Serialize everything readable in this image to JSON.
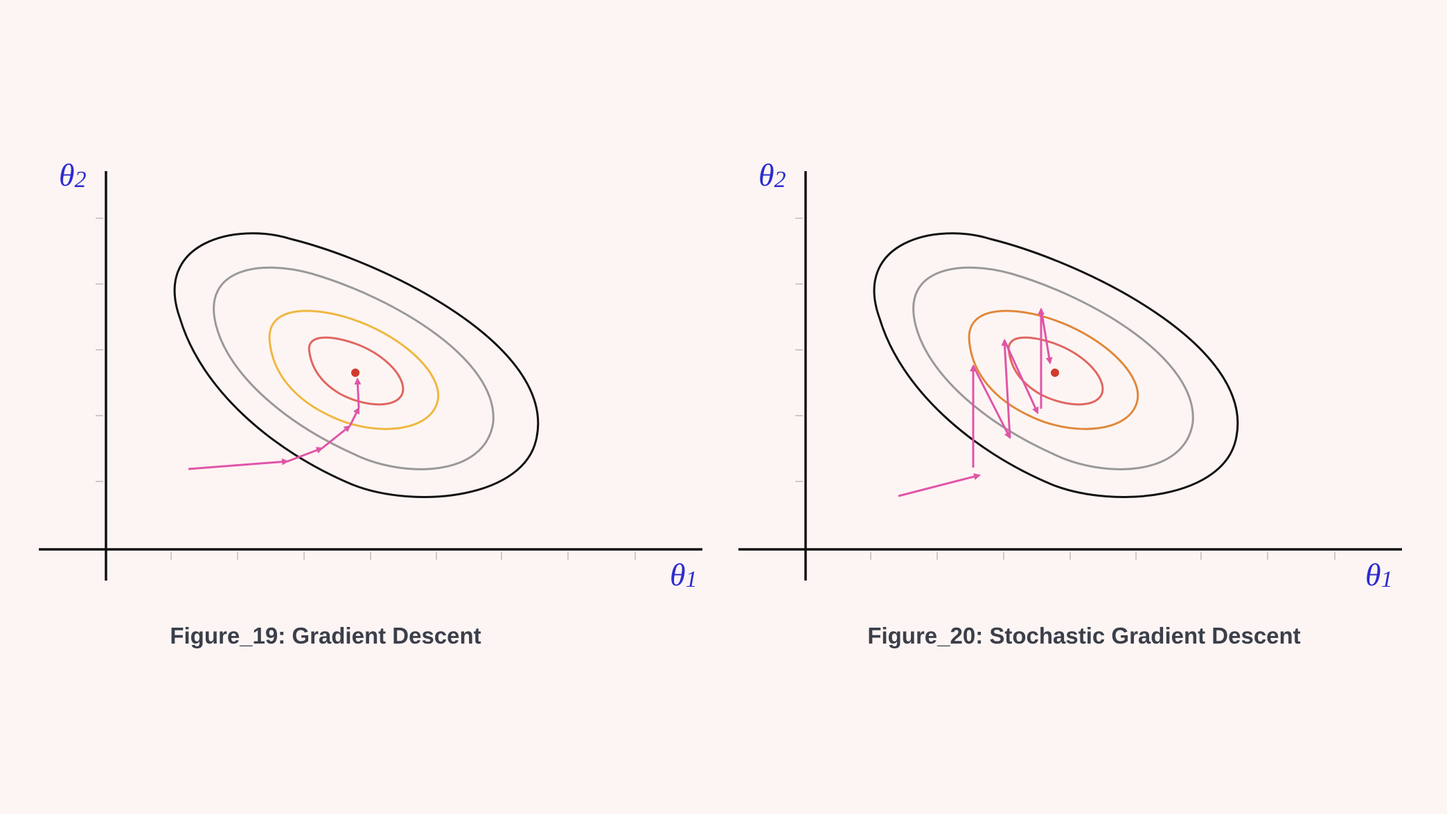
{
  "colors": {
    "background": "#fdf5f3",
    "axis": "#111111",
    "axis_label": "#2c2ccf",
    "caption": "#3b3f4a",
    "arrow": "#e055a8",
    "minimum": "#d23b2c"
  },
  "panels": [
    {
      "id": "gradient-descent",
      "caption": "Figure_19: Gradient Descent",
      "x_label": "θ",
      "x_sub": "1",
      "y_label": "θ",
      "y_sub": "2",
      "contours": [
        {
          "level": 4,
          "color": "#111111"
        },
        {
          "level": 3,
          "color": "#999999"
        },
        {
          "level": 2,
          "color": "#efb740"
        },
        {
          "level": 1,
          "color": "#e06660"
        }
      ]
    },
    {
      "id": "stochastic-gradient-descent",
      "caption": "Figure_20: Stochastic Gradient Descent",
      "x_label": "θ",
      "x_sub": "1",
      "y_label": "θ",
      "y_sub": "2",
      "contours": [
        {
          "level": 4,
          "color": "#111111"
        },
        {
          "level": 3,
          "color": "#999999"
        },
        {
          "level": 2,
          "color": "#e0883a"
        },
        {
          "level": 1,
          "color": "#e06660"
        }
      ]
    }
  ]
}
